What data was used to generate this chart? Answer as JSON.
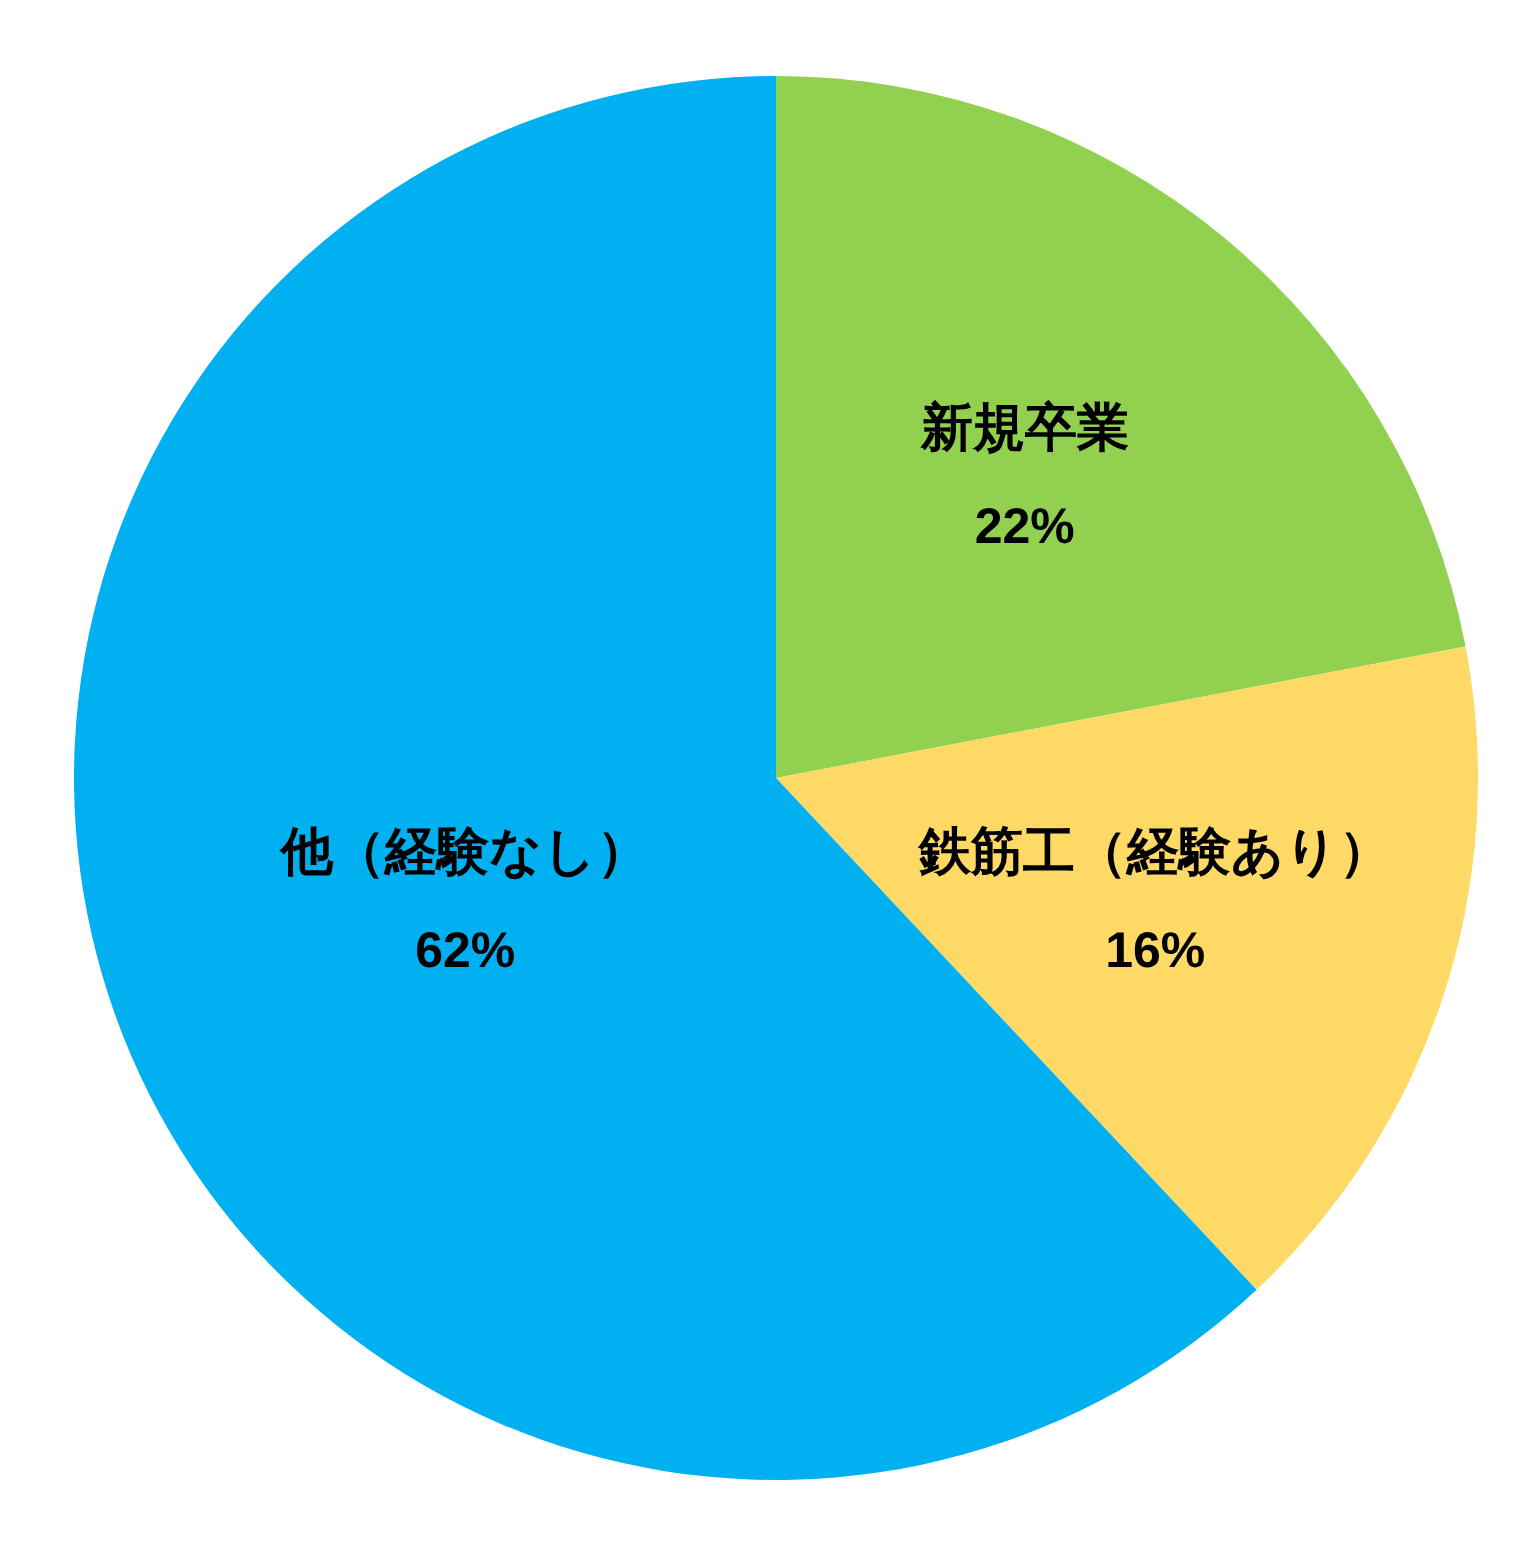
{
  "chart_data": {
    "type": "pie",
    "categories": [
      "新規卒業",
      "鉄筋工（経験あり）",
      "他（経験なし）"
    ],
    "values": [
      22,
      16,
      62
    ],
    "colors": [
      "#92d050",
      "#ffd966",
      "#00b0f0"
    ],
    "value_labels": [
      "22%",
      "16%",
      "62%"
    ]
  }
}
